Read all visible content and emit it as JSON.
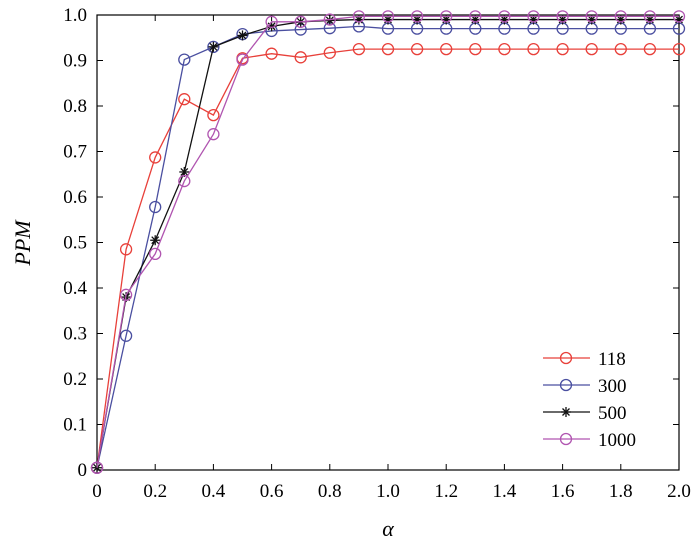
{
  "chart_data": {
    "type": "line",
    "xlabel": "α",
    "ylabel": "PPM",
    "xlim": [
      0,
      2.0
    ],
    "ylim": [
      0,
      1.0
    ],
    "x_ticks": [
      "0",
      "0.2",
      "0.4",
      "0.6",
      "0.8",
      "1.0",
      "1.2",
      "1.4",
      "1.6",
      "1.8",
      "2.0"
    ],
    "y_ticks": [
      "0",
      "0.1",
      "0.2",
      "0.3",
      "0.4",
      "0.5",
      "0.6",
      "0.7",
      "0.8",
      "0.9",
      "1.0"
    ],
    "grid": false,
    "legend_position": "bottom-right",
    "x": [
      0,
      0.1,
      0.2,
      0.3,
      0.4,
      0.5,
      0.6,
      0.7,
      0.8,
      0.9,
      1.0,
      1.1,
      1.2,
      1.3,
      1.4,
      1.5,
      1.6,
      1.7,
      1.8,
      1.9,
      2.0
    ],
    "series": [
      {
        "name": "118",
        "color": "#e8403a",
        "marker": "circle",
        "values": [
          0.005,
          0.485,
          0.687,
          0.815,
          0.78,
          0.905,
          0.915,
          0.907,
          0.917,
          0.925,
          0.925,
          0.925,
          0.925,
          0.925,
          0.925,
          0.925,
          0.925,
          0.925,
          0.925,
          0.925,
          0.925
        ]
      },
      {
        "name": "300",
        "color": "#4a4fa0",
        "marker": "circle",
        "values": [
          0.005,
          0.295,
          0.578,
          0.902,
          0.93,
          0.958,
          0.965,
          0.968,
          0.971,
          0.975,
          0.97,
          0.97,
          0.97,
          0.97,
          0.97,
          0.97,
          0.97,
          0.97,
          0.97,
          0.97,
          0.97
        ]
      },
      {
        "name": "500",
        "color": "#111111",
        "marker": "star",
        "values": [
          0.005,
          0.38,
          0.505,
          0.655,
          0.93,
          0.955,
          0.975,
          0.985,
          0.988,
          0.99,
          0.99,
          0.99,
          0.99,
          0.99,
          0.99,
          0.99,
          0.99,
          0.99,
          0.99,
          0.99,
          0.99
        ]
      },
      {
        "name": "1000",
        "color": "#b055b0",
        "marker": "circle",
        "values": [
          0.005,
          0.385,
          0.475,
          0.635,
          0.738,
          0.902,
          0.985,
          0.985,
          0.99,
          0.997,
          0.997,
          0.997,
          0.997,
          0.997,
          0.997,
          0.997,
          0.997,
          0.997,
          0.997,
          0.997,
          0.997
        ]
      }
    ]
  }
}
